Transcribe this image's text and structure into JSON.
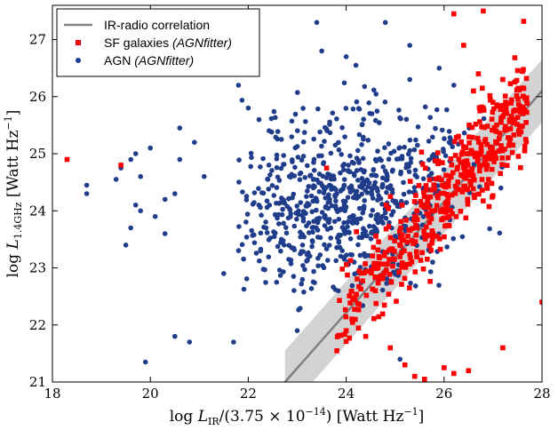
{
  "chart_data": {
    "type": "scatter",
    "title": "",
    "xlabel_parts": {
      "prefix": "log ",
      "var": "L",
      "sub": "IR",
      "middle": "/(3.75 × 10",
      "exp": "−14",
      "suffix": ") [Watt Hz",
      "suffix_exp": "−1",
      "close": "]"
    },
    "ylabel_parts": {
      "prefix": "log ",
      "var": "L",
      "sub": "1.4GHz",
      "suffix": " [Watt Hz",
      "suffix_exp": "−1",
      "close": "]"
    },
    "xlim": [
      18,
      28
    ],
    "ylim": [
      21,
      27.6
    ],
    "xticks": [
      18,
      20,
      22,
      24,
      26,
      28
    ],
    "yticks": [
      21,
      22,
      23,
      24,
      25,
      26,
      27
    ],
    "legend_position": "top-left",
    "legend": {
      "correlation": "IR-radio correlation",
      "sf_main": "SF galaxies ",
      "sf_italic": "(AGNfitter)",
      "agn_main": "AGN ",
      "agn_italic": "(AGNfitter)"
    },
    "colors": {
      "sf": "#ff0000",
      "agn": "#1f3d8a",
      "line": "#808080",
      "band": "#d3d3d3",
      "seed_sf": 7,
      "seed_agn": 13
    },
    "correlation": {
      "x": [
        22.75,
        28
      ],
      "y": [
        21.0,
        26.1
      ],
      "scatter_dex": 0.55
    },
    "series": [
      {
        "name": "AGN",
        "note": "explicit outlier points plus clustered population",
        "points": [
          [
            18.7,
            24.45
          ],
          [
            18.7,
            24.3
          ],
          [
            19.3,
            24.55
          ],
          [
            19.4,
            24.75
          ],
          [
            19.6,
            24.9
          ],
          [
            19.7,
            25.0
          ],
          [
            19.8,
            24.6
          ],
          [
            20.0,
            25.1
          ],
          [
            19.7,
            24.1
          ],
          [
            19.8,
            24.0
          ],
          [
            20.1,
            23.9
          ],
          [
            19.6,
            23.7
          ],
          [
            19.5,
            23.4
          ],
          [
            20.3,
            24.2
          ],
          [
            20.3,
            23.6
          ],
          [
            20.5,
            24.3
          ],
          [
            20.6,
            24.9
          ],
          [
            20.9,
            25.2
          ],
          [
            20.6,
            25.45
          ],
          [
            21.1,
            24.6
          ],
          [
            21.8,
            26.2
          ],
          [
            22.0,
            25.8
          ],
          [
            20.5,
            21.8
          ],
          [
            20.8,
            21.7
          ],
          [
            21.7,
            21.7
          ],
          [
            19.9,
            21.35
          ],
          [
            21.5,
            22.9
          ],
          [
            23.0,
            21.9
          ],
          [
            23.4,
            27.3
          ],
          [
            23.5,
            26.8
          ],
          [
            24.0,
            26.7
          ],
          [
            24.2,
            26.55
          ],
          [
            24.8,
            27.3
          ],
          [
            25.3,
            26.9
          ],
          [
            25.9,
            26.5
          ],
          [
            26.2,
            26.2
          ],
          [
            25.1,
            21.4
          ],
          [
            25.3,
            26.3
          ]
        ],
        "cluster": {
          "count": 720,
          "center_x": 24.0,
          "center_y": 24.2,
          "sd_x": 1.25,
          "sd_y": 0.75,
          "x_range": [
            21.8,
            27.2
          ],
          "y_range": [
            22.2,
            26.3
          ]
        }
      },
      {
        "name": "SF",
        "note": "explicit outlier points plus population following IR-radio correlation",
        "points": [
          [
            18.3,
            24.9
          ],
          [
            19.4,
            24.8
          ],
          [
            23.6,
            24.75
          ],
          [
            24.0,
            21.9
          ],
          [
            24.4,
            21.8
          ],
          [
            24.9,
            21.6
          ],
          [
            25.2,
            21.3
          ],
          [
            25.4,
            21.1
          ],
          [
            25.6,
            21.05
          ],
          [
            26.2,
            21.15
          ],
          [
            26.5,
            21.2
          ],
          [
            27.2,
            21.6
          ],
          [
            26.8,
            27.5
          ],
          [
            26.2,
            27.45
          ],
          [
            26.4,
            26.9
          ],
          [
            26.6,
            26.1
          ],
          [
            26.8,
            25.8
          ],
          [
            26.7,
            26.4
          ],
          [
            27.0,
            25.9
          ],
          [
            27.2,
            26.3
          ],
          [
            28.0,
            22.4
          ],
          [
            26.0,
            21.25
          ]
        ],
        "cluster": {
          "count": 480,
          "x_range": [
            23.8,
            27.7
          ],
          "relation_slope": 0.97,
          "relation_intercept_at_x24": 22.3,
          "sd_y": 0.4
        }
      }
    ]
  }
}
